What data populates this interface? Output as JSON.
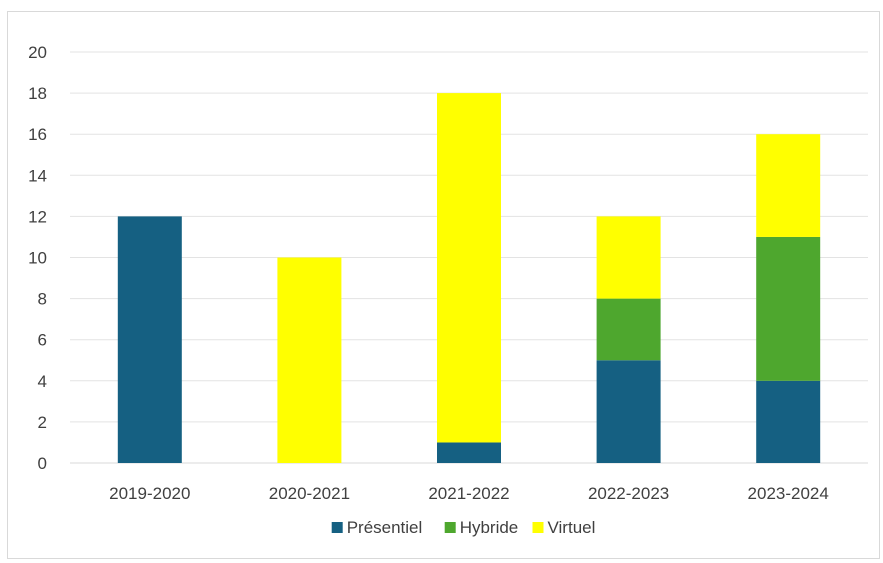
{
  "chart_data": {
    "type": "bar",
    "stacked": true,
    "categories": [
      "2019-2020",
      "2020-2021",
      "2021-2022",
      "2022-2023",
      "2023-2024"
    ],
    "series": [
      {
        "name": "Présentiel",
        "color": "#156082",
        "values": [
          12,
          0,
          1,
          5,
          4
        ]
      },
      {
        "name": "Hybride",
        "color": "#4ea72e",
        "values": [
          0,
          0,
          0,
          3,
          7
        ]
      },
      {
        "name": "Virtuel",
        "color": "#ffff00",
        "values": [
          0,
          10,
          17,
          4,
          5
        ]
      }
    ],
    "yticks": [
      "0",
      "2",
      "4",
      "6",
      "8",
      "10",
      "12",
      "14",
      "16",
      "18",
      "20"
    ],
    "ylim": [
      0,
      20
    ],
    "grid": true,
    "legend_position": "bottom"
  }
}
